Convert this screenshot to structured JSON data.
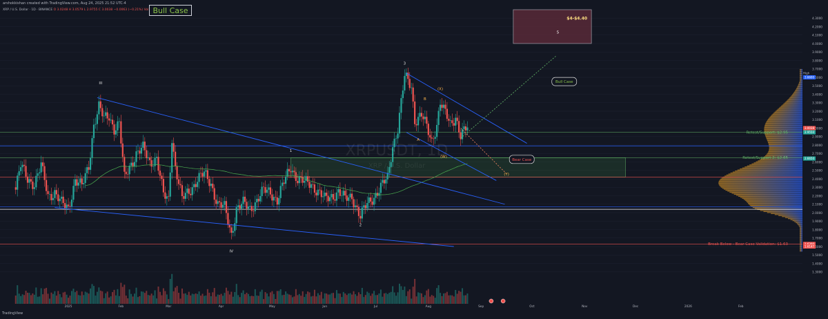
{
  "header": {
    "author_line": "arshokkishan created with TradingView.com, Aug 24, 2025 21:52 UTC-4",
    "symbol_line": "XRP / U.S. Dollar · 1D · BINANCE",
    "ohlc": "O 3.0248  H 3.0579  L 2.9755  C 3.0038  −0.0063 (−0.21%)",
    "volume": "Vol 81.364"
  },
  "chart_data": {
    "type": "candlestick",
    "title": "Bull Case",
    "watermark_symbol": "XRPUSDT, 1D",
    "watermark_name": "XRP / U.S. Dollar",
    "footer_brand": "TradingView",
    "ylim": [
      1.2,
      4.4
    ],
    "y_ticks": [
      1.3,
      1.4,
      1.5,
      1.6,
      1.7,
      1.8,
      1.9,
      2.0,
      2.1,
      2.2,
      2.3,
      2.4,
      2.5,
      2.6,
      2.7,
      2.8,
      2.9,
      3.0,
      3.1,
      3.2,
      3.3,
      3.4,
      3.5,
      3.6,
      3.7,
      3.8,
      3.9,
      4.0,
      4.1,
      4.2,
      4.3
    ],
    "x_ticks": [
      "2025",
      "Feb",
      "Mar",
      "Apr",
      "May",
      "Jun",
      "Jul",
      "Aug",
      "Sep",
      "Oct",
      "Nov",
      "Dec",
      "2026",
      "Feb"
    ],
    "price_path": [
      [
        "2024-12-01",
        2.3
      ],
      [
        "2024-12-04",
        2.55
      ],
      [
        "2024-12-08",
        2.4
      ],
      [
        "2024-12-12",
        2.35
      ],
      [
        "2024-12-16",
        2.55
      ],
      [
        "2024-12-20",
        2.2
      ],
      [
        "2024-12-24",
        2.25
      ],
      [
        "2024-12-28",
        2.1
      ],
      [
        "2025-01-01",
        2.05
      ],
      [
        "2025-01-05",
        2.4
      ],
      [
        "2025-01-09",
        2.3
      ],
      [
        "2025-01-13",
        2.55
      ],
      [
        "2025-01-16",
        3.05
      ],
      [
        "2025-01-19",
        3.25
      ],
      [
        "2025-01-22",
        3.1
      ],
      [
        "2025-01-25",
        3.15
      ],
      [
        "2025-01-28",
        3.0
      ],
      [
        "2025-01-31",
        3.05
      ],
      [
        "2025-02-03",
        2.4
      ],
      [
        "2025-02-06",
        2.55
      ],
      [
        "2025-02-10",
        2.7
      ],
      [
        "2025-02-14",
        2.75
      ],
      [
        "2025-02-18",
        2.6
      ],
      [
        "2025-02-22",
        2.65
      ],
      [
        "2025-02-26",
        2.2
      ],
      [
        "2025-03-01",
        2.15
      ],
      [
        "2025-03-03",
        2.9
      ],
      [
        "2025-03-05",
        2.55
      ],
      [
        "2025-03-09",
        2.15
      ],
      [
        "2025-03-13",
        2.25
      ],
      [
        "2025-03-18",
        2.4
      ],
      [
        "2025-03-22",
        2.45
      ],
      [
        "2025-03-26",
        2.35
      ],
      [
        "2025-03-30",
        2.1
      ],
      [
        "2025-04-03",
        2.05
      ],
      [
        "2025-04-07",
        1.75
      ],
      [
        "2025-04-10",
        2.05
      ],
      [
        "2025-04-14",
        2.1
      ],
      [
        "2025-04-18",
        2.05
      ],
      [
        "2025-04-22",
        2.15
      ],
      [
        "2025-04-26",
        2.25
      ],
      [
        "2025-04-30",
        2.25
      ],
      [
        "2025-05-04",
        2.15
      ],
      [
        "2025-05-08",
        2.35
      ],
      [
        "2025-05-12",
        2.55
      ],
      [
        "2025-05-16",
        2.4
      ],
      [
        "2025-05-20",
        2.35
      ],
      [
        "2025-05-24",
        2.35
      ],
      [
        "2025-05-28",
        2.25
      ],
      [
        "2025-06-01",
        2.15
      ],
      [
        "2025-06-05",
        2.2
      ],
      [
        "2025-06-09",
        2.25
      ],
      [
        "2025-06-13",
        2.15
      ],
      [
        "2025-06-17",
        2.2
      ],
      [
        "2025-06-22",
        1.95
      ],
      [
        "2025-06-26",
        2.1
      ],
      [
        "2025-06-30",
        2.2
      ],
      [
        "2025-07-04",
        2.3
      ],
      [
        "2025-07-08",
        2.4
      ],
      [
        "2025-07-11",
        2.8
      ],
      [
        "2025-07-14",
        3.0
      ],
      [
        "2025-07-17",
        3.45
      ],
      [
        "2025-07-18",
        3.6
      ],
      [
        "2025-07-22",
        3.5
      ],
      [
        "2025-07-24",
        3.1
      ],
      [
        "2025-07-28",
        3.15
      ],
      [
        "2025-08-01",
        2.95
      ],
      [
        "2025-08-03",
        2.85
      ],
      [
        "2025-08-06",
        3.05
      ],
      [
        "2025-08-08",
        3.3
      ],
      [
        "2025-08-10",
        3.2
      ],
      [
        "2025-08-14",
        3.05
      ],
      [
        "2025-08-17",
        3.15
      ],
      [
        "2025-08-20",
        2.9
      ],
      [
        "2025-08-24",
        3.0
      ]
    ],
    "levels": [
      {
        "label": "Retest/Support: $2.95",
        "price": 2.95,
        "color": "#66bb6a"
      },
      {
        "label": "Retest/Support 2: $2.65",
        "price": 2.65,
        "color": "#66bb6a"
      },
      {
        "label": "Break Below - Bear Case Validation: $1.63",
        "price": 1.63,
        "color": "#ef5350"
      }
    ],
    "horizontal_lines": [
      {
        "price": 2.79,
        "color": "#2962ff"
      },
      {
        "price": 2.42,
        "color": "#ef5350"
      },
      {
        "price": 2.07,
        "color": "#2962ff"
      },
      {
        "price": 2.04,
        "color": "#f0f0f0"
      }
    ],
    "target_zone": {
      "label": "$4-$4.40",
      "wave": "5",
      "from": 4.0,
      "to": 4.4,
      "start": "2025-09-20",
      "end": "2025-11-05"
    },
    "support_zone": {
      "from": 2.42,
      "to": 2.65,
      "start": "2025-05-12",
      "end": "2025-11-25"
    },
    "wave_labels": [
      {
        "text": "III",
        "date": "2025-01-20",
        "price": 3.52
      },
      {
        "text": "IV",
        "date": "2025-04-07",
        "price": 1.53
      },
      {
        "text": "1",
        "date": "2025-05-12",
        "price": 2.72
      },
      {
        "text": "2",
        "date": "2025-06-22",
        "price": 1.84
      },
      {
        "text": "3",
        "date": "2025-07-18",
        "price": 3.75
      },
      {
        "text": "A",
        "date": "2025-07-26",
        "price": 2.85
      },
      {
        "text": "B",
        "date": "2025-07-30",
        "price": 3.33
      },
      {
        "text": "(X)",
        "date": "2025-08-08",
        "price": 3.45
      },
      {
        "text": "(W)",
        "date": "2025-08-10",
        "price": 2.65
      },
      {
        "text": "(Y)",
        "date": "2025-09-16",
        "price": 2.44
      }
    ],
    "scenario_labels": {
      "bull": "Bull Case",
      "bear": "Bear Case"
    },
    "price_tags": [
      {
        "text": "High",
        "price": 3.65
      },
      {
        "text": "3.6600",
        "price": 3.6
      },
      {
        "text": "3.0038",
        "price": 3.0
      },
      {
        "text": "2.9550",
        "price": 2.95
      },
      {
        "text": "2.6650",
        "price": 2.64
      },
      {
        "text": "1.6300",
        "price": 1.63
      },
      {
        "text": "Low",
        "price": 1.6
      },
      {
        "text": "1.6147",
        "price": 1.6
      }
    ],
    "events": [
      {
        "date": "2025-09-07"
      },
      {
        "date": "2025-09-14"
      }
    ]
  }
}
